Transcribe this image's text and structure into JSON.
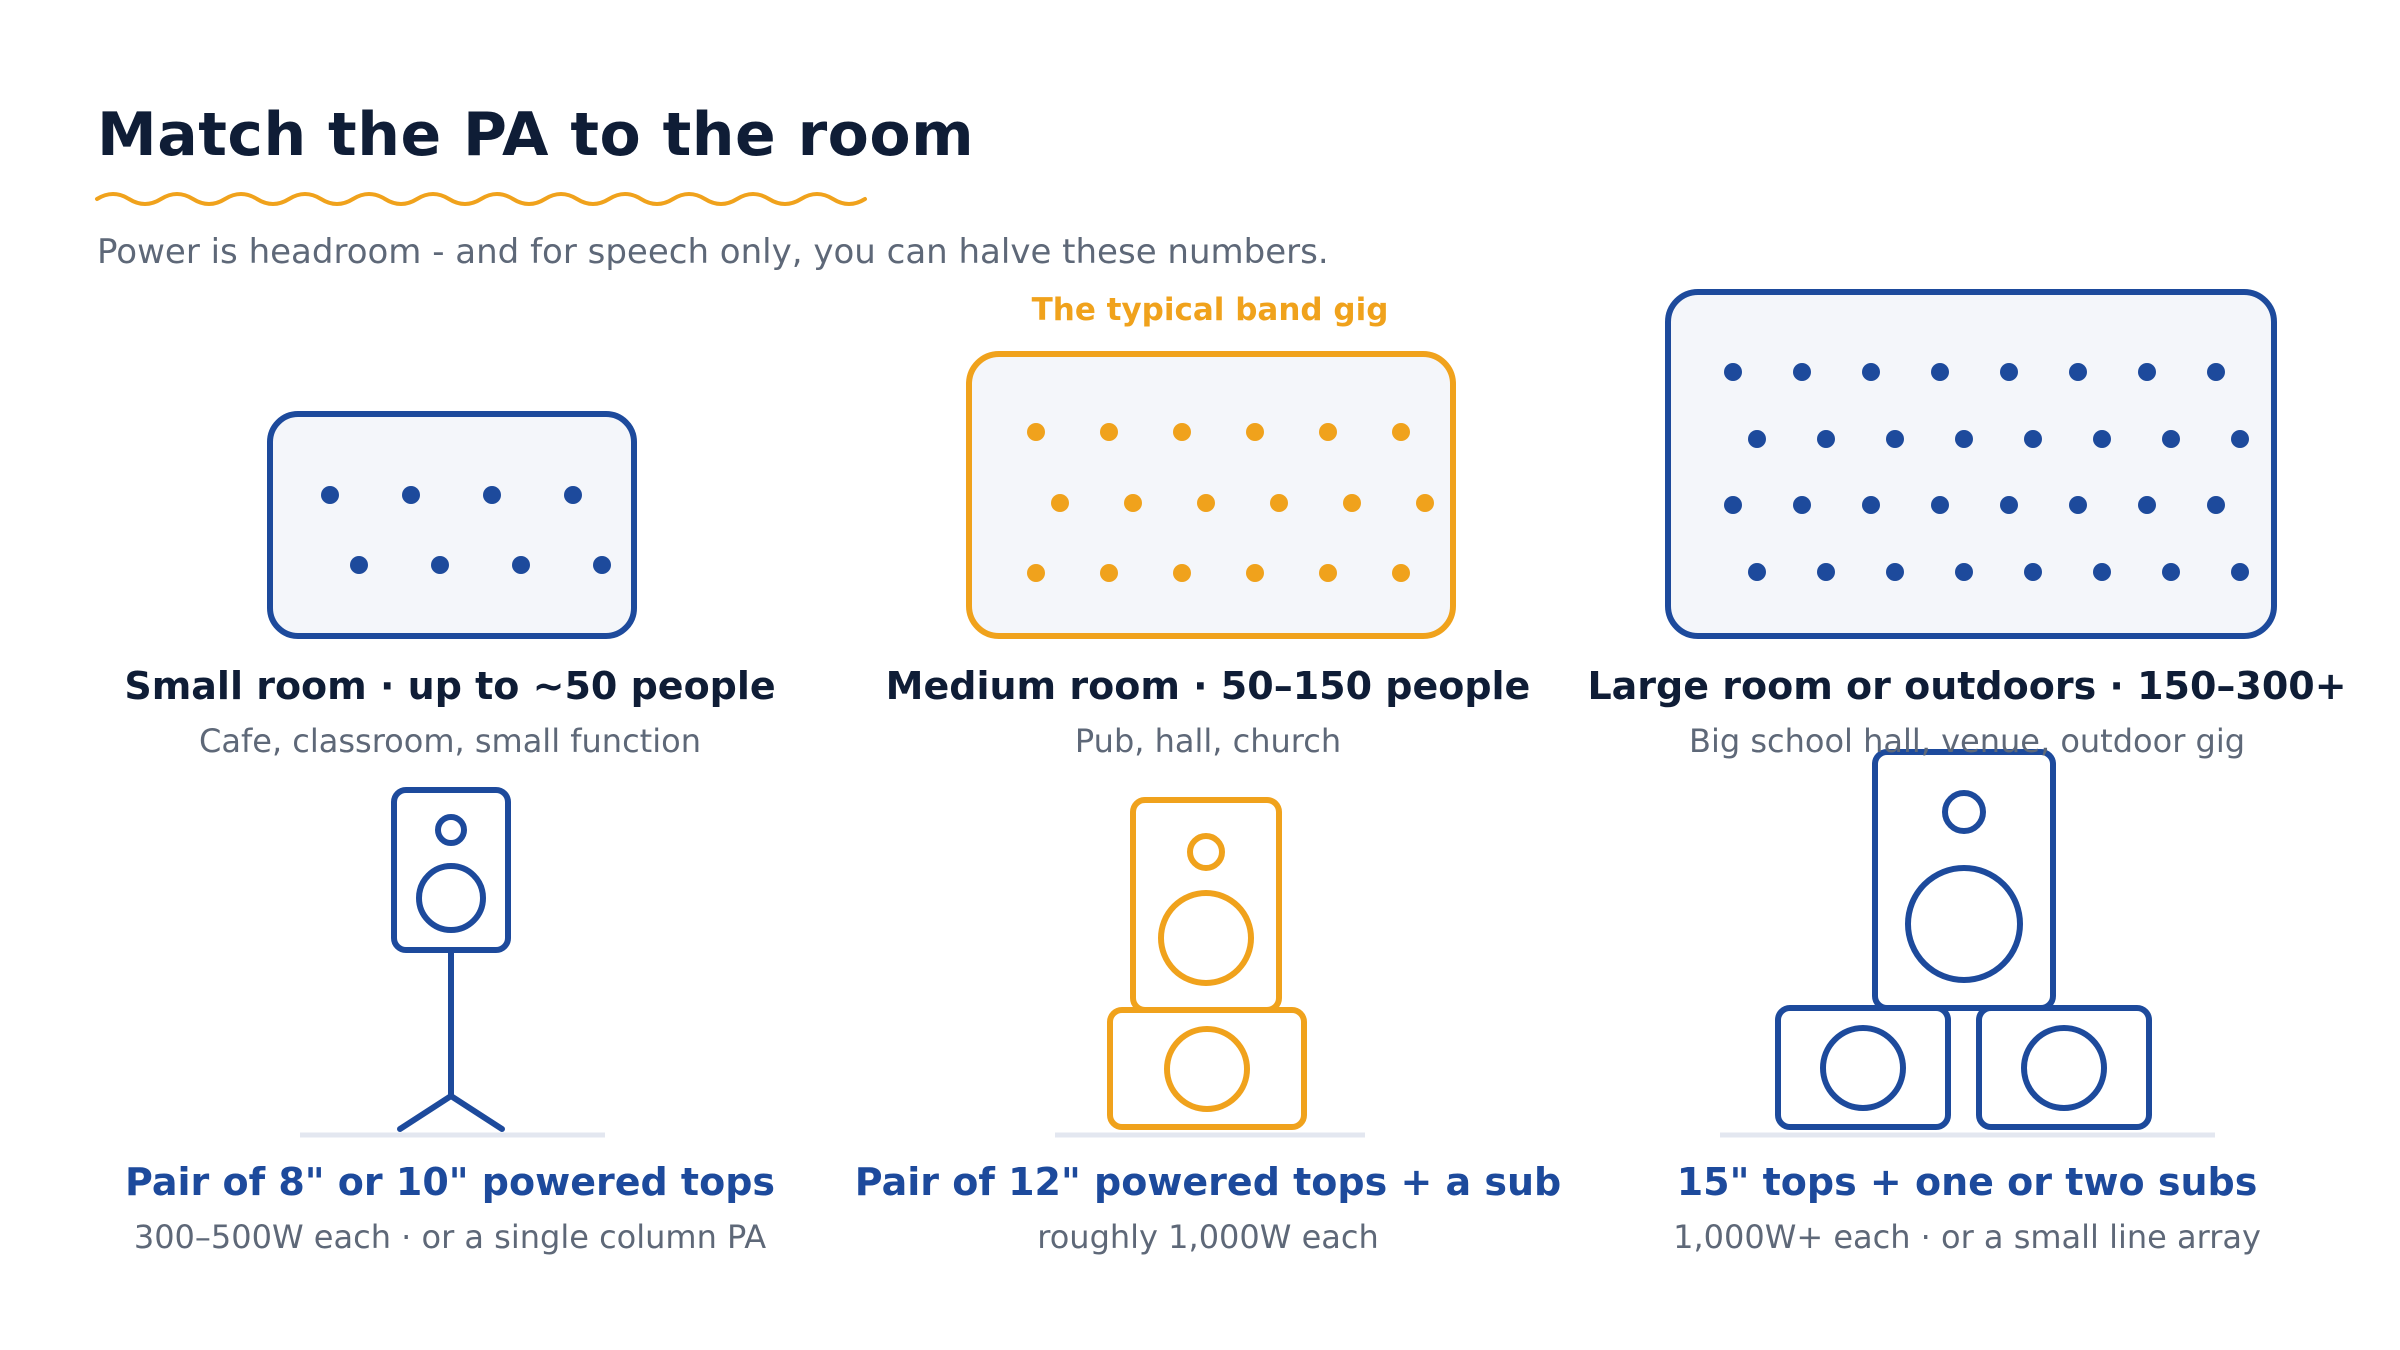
{
  "title": "Match the PA to the room",
  "subtitle": "Power is headroom - and for speech only, you can halve these numbers.",
  "highlight_tag": "The typical band gig",
  "colors": {
    "navy": "#1d4a9c",
    "orange": "#f0a21c",
    "heading": "#0f1d36",
    "muted": "#5e6878",
    "panel_fill": "#f4f6fa",
    "floor": "#e3e7f0"
  },
  "tiers": [
    {
      "room_name": "Small room · up to ~50 people",
      "room_desc": "Cafe, classroom, small function",
      "gear_name": "Pair of 8\" or 10\" powered tops",
      "gear_desc": "300–500W each · or a single column PA",
      "audience_dots": 8,
      "icon": "speaker-on-stand-icon",
      "accent": "navy"
    },
    {
      "room_name": "Medium room · 50–150 people",
      "room_desc": "Pub, hall, church",
      "gear_name": "Pair of 12\" powered tops + a sub",
      "gear_desc": "roughly 1,000W each",
      "audience_dots": 18,
      "icon": "speaker-with-sub-icon",
      "accent": "orange"
    },
    {
      "room_name": "Large room or outdoors · 150–300+",
      "room_desc": "Big school hall, venue, outdoor gig",
      "gear_name": "15\" tops + one or two subs",
      "gear_desc": "1,000W+ each · or a small line array",
      "audience_dots": 32,
      "icon": "speaker-with-two-subs-icon",
      "accent": "navy"
    }
  ]
}
